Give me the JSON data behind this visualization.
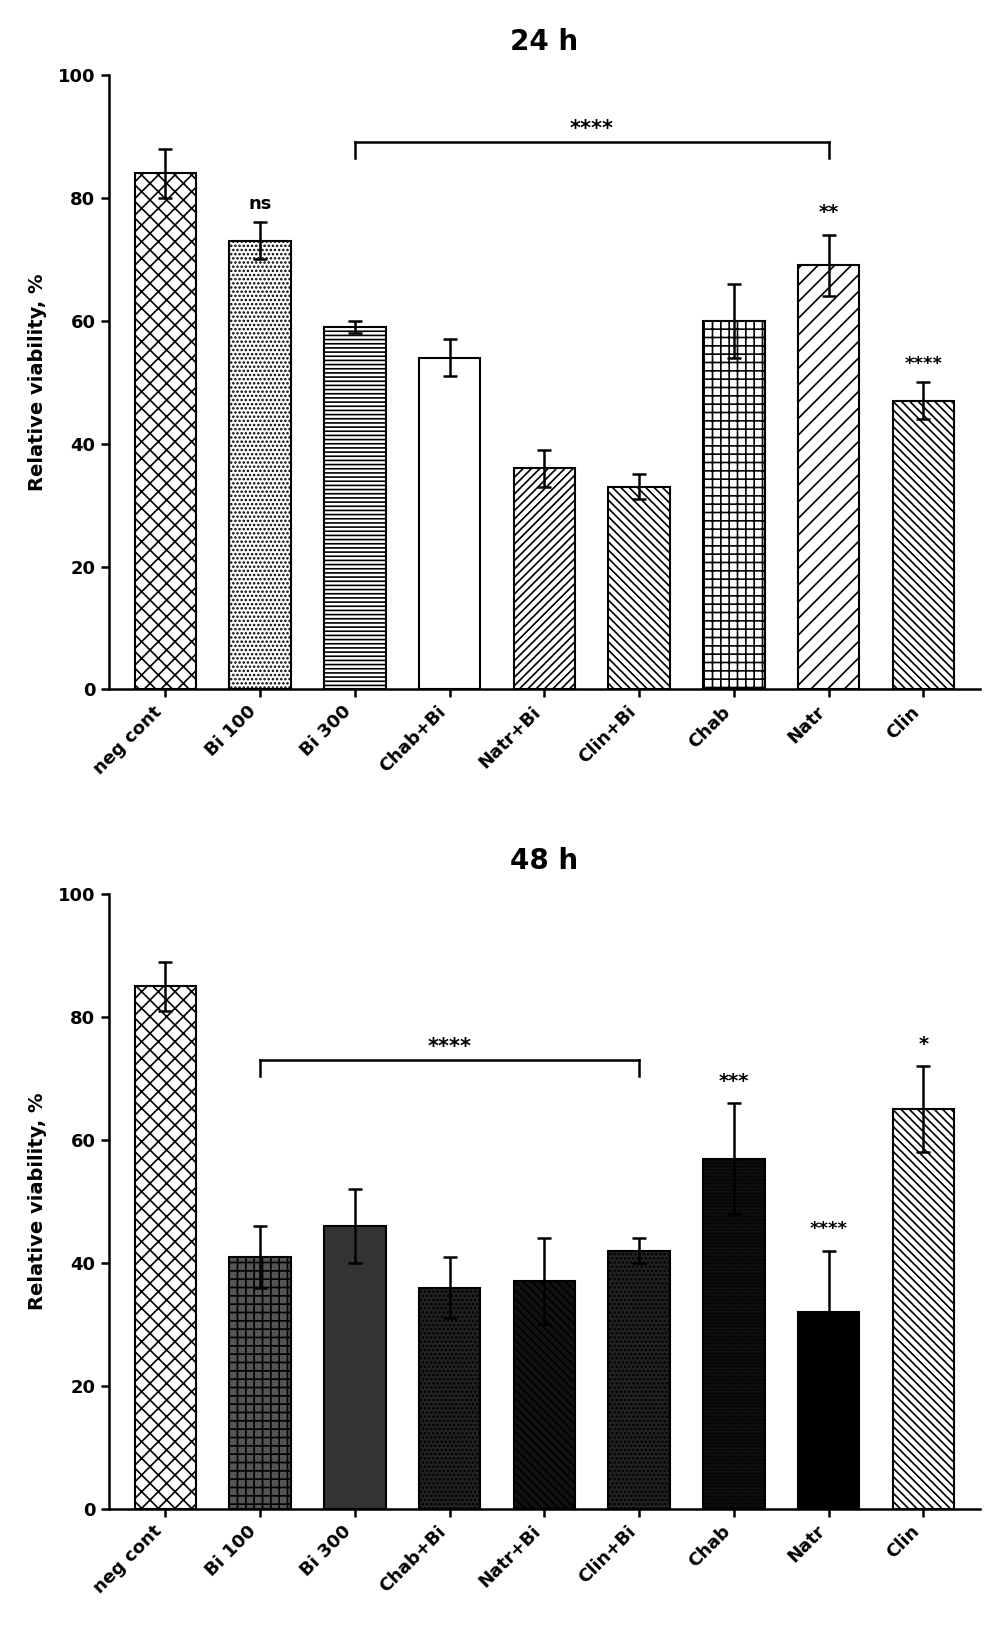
{
  "title1": "24 h",
  "title2": "48 h",
  "ylabel": "Relative viability, %",
  "categories": [
    "neg cont",
    "Bi 100",
    "Bi 300",
    "Chab+Bi",
    "Natr+Bi",
    "Clin+Bi",
    "Chab",
    "Natr",
    "Clin"
  ],
  "values_24h": [
    84,
    73,
    59,
    54,
    36,
    33,
    60,
    69,
    47
  ],
  "errors_24h": [
    4,
    3,
    1,
    3,
    3,
    2,
    6,
    5,
    3
  ],
  "values_48h": [
    85,
    41,
    46,
    36,
    37,
    42,
    57,
    32,
    65
  ],
  "errors_48h": [
    4,
    5,
    6,
    5,
    7,
    2,
    9,
    10,
    7
  ],
  "ylim": [
    0,
    100
  ],
  "yticks": [
    0,
    20,
    40,
    60,
    80,
    100
  ]
}
